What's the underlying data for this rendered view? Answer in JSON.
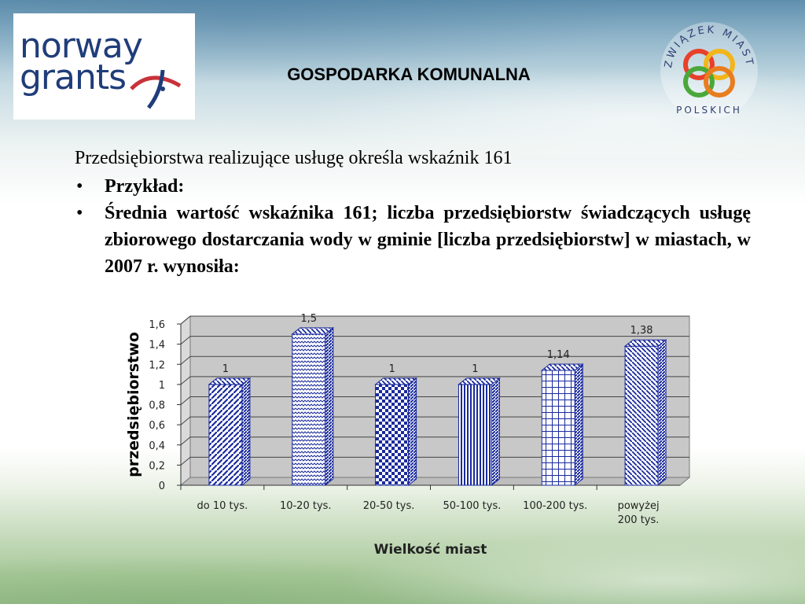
{
  "header": {
    "logo_line1": "norway",
    "logo_line2": "grants",
    "title": "GOSPODARKA KOMUNALNA",
    "seal_text": "ZWIĄZEK MIAST POLSKICH"
  },
  "content": {
    "intro": "Przedsiębiorstwa realizujące usługę określa wskaźnik 161",
    "bullet_char": "•",
    "bullets": [
      "Przykład:",
      "Średnia wartość wskaźnika 161; liczba przedsiębiorstw świadczących usługę zbiorowego dostarczania wody w gminie [liczba przedsiębiorstw] w miastach, w 2007 r. wynosiła:"
    ]
  },
  "chart_data": {
    "type": "bar",
    "categories": [
      "do 10 tys.",
      "10-20 tys.",
      "20-50 tys.",
      "50-100 tys.",
      "100-200 tys.",
      "powyżej 200 tys."
    ],
    "category_lines": [
      [
        "do 10 tys."
      ],
      [
        "10-20 tys."
      ],
      [
        "20-50 tys."
      ],
      [
        "50-100 tys."
      ],
      [
        "100-200 tys."
      ],
      [
        "powyżej",
        "200 tys."
      ]
    ],
    "values": [
      1,
      1.5,
      1,
      1,
      1.14,
      1.38
    ],
    "data_labels": [
      "1",
      "1,5",
      "1",
      "1",
      "1,14",
      "1,38"
    ],
    "ylim": [
      0,
      1.6
    ],
    "yticks": [
      "0",
      "0,2",
      "0,4",
      "0,6",
      "0,8",
      "1",
      "1,2",
      "1,4",
      "1,6"
    ],
    "ylabel": "przedsiębiorstwo",
    "xlabel": "Wielkość miast",
    "three_d": true,
    "grid": true,
    "colors": {
      "bar": "#1a2a9c",
      "wall": "#c8c8c8",
      "grid": "#444444"
    }
  }
}
